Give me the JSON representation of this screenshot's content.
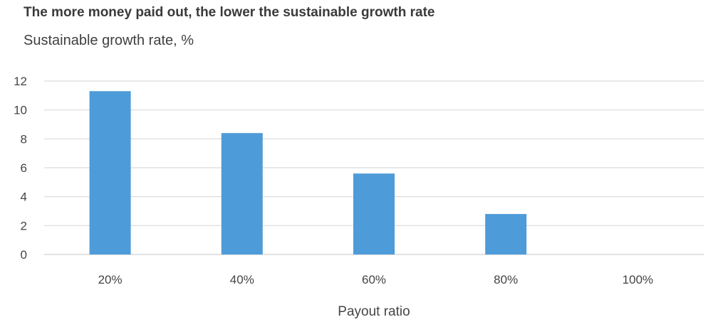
{
  "title": "The more money paid out, the lower the sustainable growth rate",
  "subtitle": "Sustainable growth rate, %",
  "colors": {
    "bar": "#4e9bd9",
    "grid": "#d9d9d9",
    "text": "#404040"
  },
  "chart_data": {
    "type": "bar",
    "title": "The more money paid out, the lower the sustainable growth rate",
    "subtitle": "Sustainable growth rate, %",
    "xlabel": "Payout ratio",
    "ylabel": "",
    "categories": [
      "20%",
      "40%",
      "60%",
      "80%",
      "100%"
    ],
    "values": [
      11.3,
      8.4,
      5.6,
      2.8,
      0
    ],
    "ylim": [
      0,
      12
    ],
    "yticks": [
      0,
      2,
      4,
      6,
      8,
      10,
      12
    ],
    "grid": true,
    "legend": "none"
  }
}
